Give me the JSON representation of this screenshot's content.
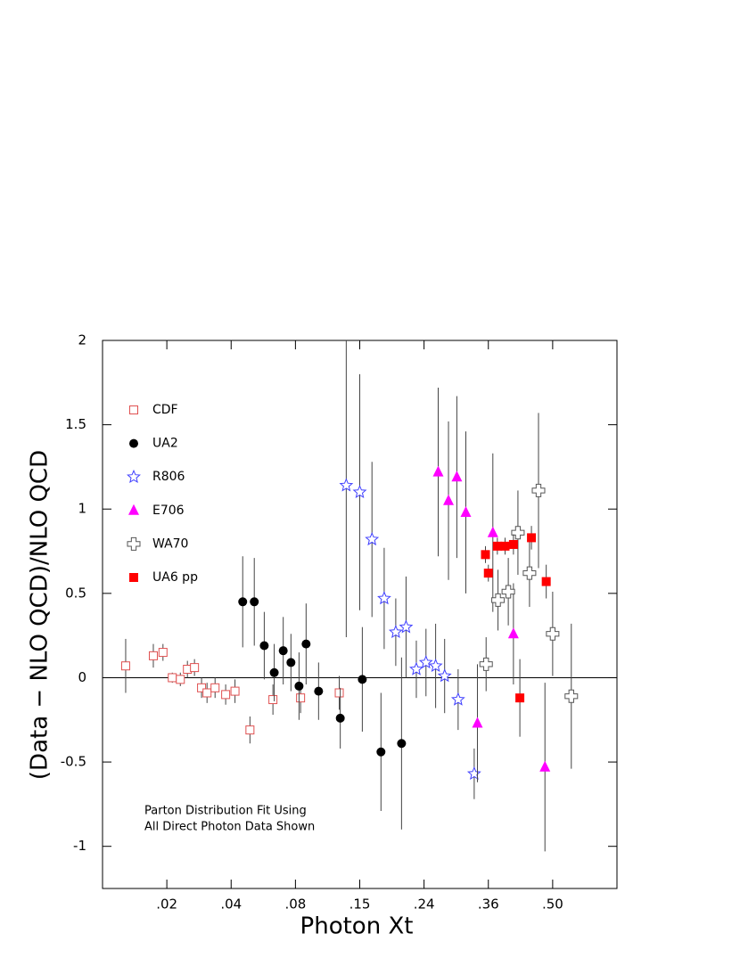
{
  "chart_data": {
    "type": "scatter",
    "xlabel": "Photon Xt",
    "ylabel": "(Data − NLO QCD)/NLO QCD",
    "annotation": [
      "Parton Distribution Fit Using",
      "All Direct Photon Data Shown"
    ],
    "xscale": "piecewise",
    "xlim": [
      0.01,
      0.7
    ],
    "xticks": [
      {
        "value": 0.02,
        "label": ".02"
      },
      {
        "value": 0.04,
        "label": ".04"
      },
      {
        "value": 0.08,
        "label": ".08"
      },
      {
        "value": 0.15,
        "label": ".15"
      },
      {
        "value": 0.24,
        "label": ".24"
      },
      {
        "value": 0.36,
        "label": ".36"
      },
      {
        "value": 0.5,
        "label": ".50"
      }
    ],
    "ylim": [
      -1.25,
      2
    ],
    "yticks": [
      -1,
      -0.5,
      0,
      0.5,
      1,
      1.5,
      2
    ],
    "legend": "upper left",
    "series": [
      {
        "name": "CDF",
        "color": "#e05050",
        "marker": "open-square",
        "x": [
          0.0136,
          0.0179,
          0.0194,
          0.0217,
          0.0242,
          0.0264,
          0.0286,
          0.0308,
          0.0325,
          0.035,
          0.0383,
          0.0424,
          0.0517,
          0.066,
          0.0856,
          0.1277
        ],
        "values": [
          0.07,
          0.13,
          0.15,
          0.0,
          -0.01,
          0.05,
          0.06,
          -0.06,
          -0.09,
          -0.06,
          -0.1,
          -0.08,
          -0.31,
          -0.13,
          -0.12,
          -0.09
        ],
        "errors": [
          0.16,
          0.07,
          0.05,
          0.03,
          0.04,
          0.05,
          0.05,
          0.06,
          0.06,
          0.06,
          0.06,
          0.07,
          0.08,
          0.09,
          0.09,
          0.1
        ]
      },
      {
        "name": "UA2",
        "color": "#000000",
        "marker": "circle",
        "x": [
          0.0472,
          0.0544,
          0.0606,
          0.0668,
          0.0724,
          0.0772,
          0.0839,
          0.0916,
          0.1052,
          0.1288,
          0.1536,
          0.1797,
          0.2085
        ],
        "values": [
          0.45,
          0.45,
          0.19,
          0.03,
          0.16,
          0.09,
          -0.05,
          0.2,
          -0.08,
          -0.24,
          -0.01,
          -0.44,
          -0.39
        ],
        "errors": [
          0.27,
          0.26,
          0.2,
          0.17,
          0.2,
          0.17,
          0.2,
          0.24,
          0.17,
          0.18,
          0.31,
          0.35,
          0.51
        ]
      },
      {
        "name": "R806",
        "color": "#4040ff",
        "marker": "star",
        "x": [
          0.1353,
          0.15,
          0.1671,
          0.1842,
          0.2004,
          0.2148,
          0.2292,
          0.2436,
          0.2616,
          0.2784,
          0.3036,
          0.3336
        ],
        "values": [
          1.14,
          1.1,
          0.82,
          0.47,
          0.27,
          0.3,
          0.05,
          0.09,
          0.07,
          0.01,
          -0.13,
          -0.57
        ],
        "errors": [
          0.9,
          0.7,
          0.46,
          0.3,
          0.2,
          0.3,
          0.17,
          0.2,
          0.25,
          0.22,
          0.18,
          0.15
        ]
      },
      {
        "name": "E706",
        "color": "#ff00ff",
        "marker": "triangle",
        "x": [
          0.2664,
          0.2856,
          0.3012,
          0.318,
          0.3396,
          0.3698,
          0.4146,
          0.4832
        ],
        "values": [
          1.22,
          1.05,
          1.19,
          0.98,
          -0.27,
          0.86,
          0.26,
          -0.53
        ],
        "errors": [
          0.5,
          0.47,
          0.48,
          0.48,
          0.35,
          0.47,
          0.3,
          0.5
        ]
      },
      {
        "name": "WA70",
        "color": "#555555",
        "marker": "open-cross",
        "x": [
          0.3558,
          0.381,
          0.4034,
          0.4244,
          0.4496,
          0.4692,
          0.5,
          0.558
        ],
        "values": [
          0.08,
          0.46,
          0.51,
          0.86,
          0.62,
          1.11,
          0.26,
          -0.11
        ],
        "errors": [
          0.16,
          0.18,
          0.2,
          0.25,
          0.2,
          0.46,
          0.25,
          0.43
        ]
      },
      {
        "name": "UA6 pp",
        "color": "#ff0000",
        "marker": "square",
        "x": [
          0.3546,
          0.36,
          0.3796,
          0.3964,
          0.4146,
          0.4286,
          0.4538,
          0.486
        ],
        "values": [
          0.73,
          0.62,
          0.78,
          0.78,
          0.79,
          -0.12,
          0.83,
          0.57
        ],
        "errors": [
          0.05,
          0.05,
          0.05,
          0.05,
          0.06,
          0.23,
          0.07,
          0.1
        ]
      }
    ]
  }
}
